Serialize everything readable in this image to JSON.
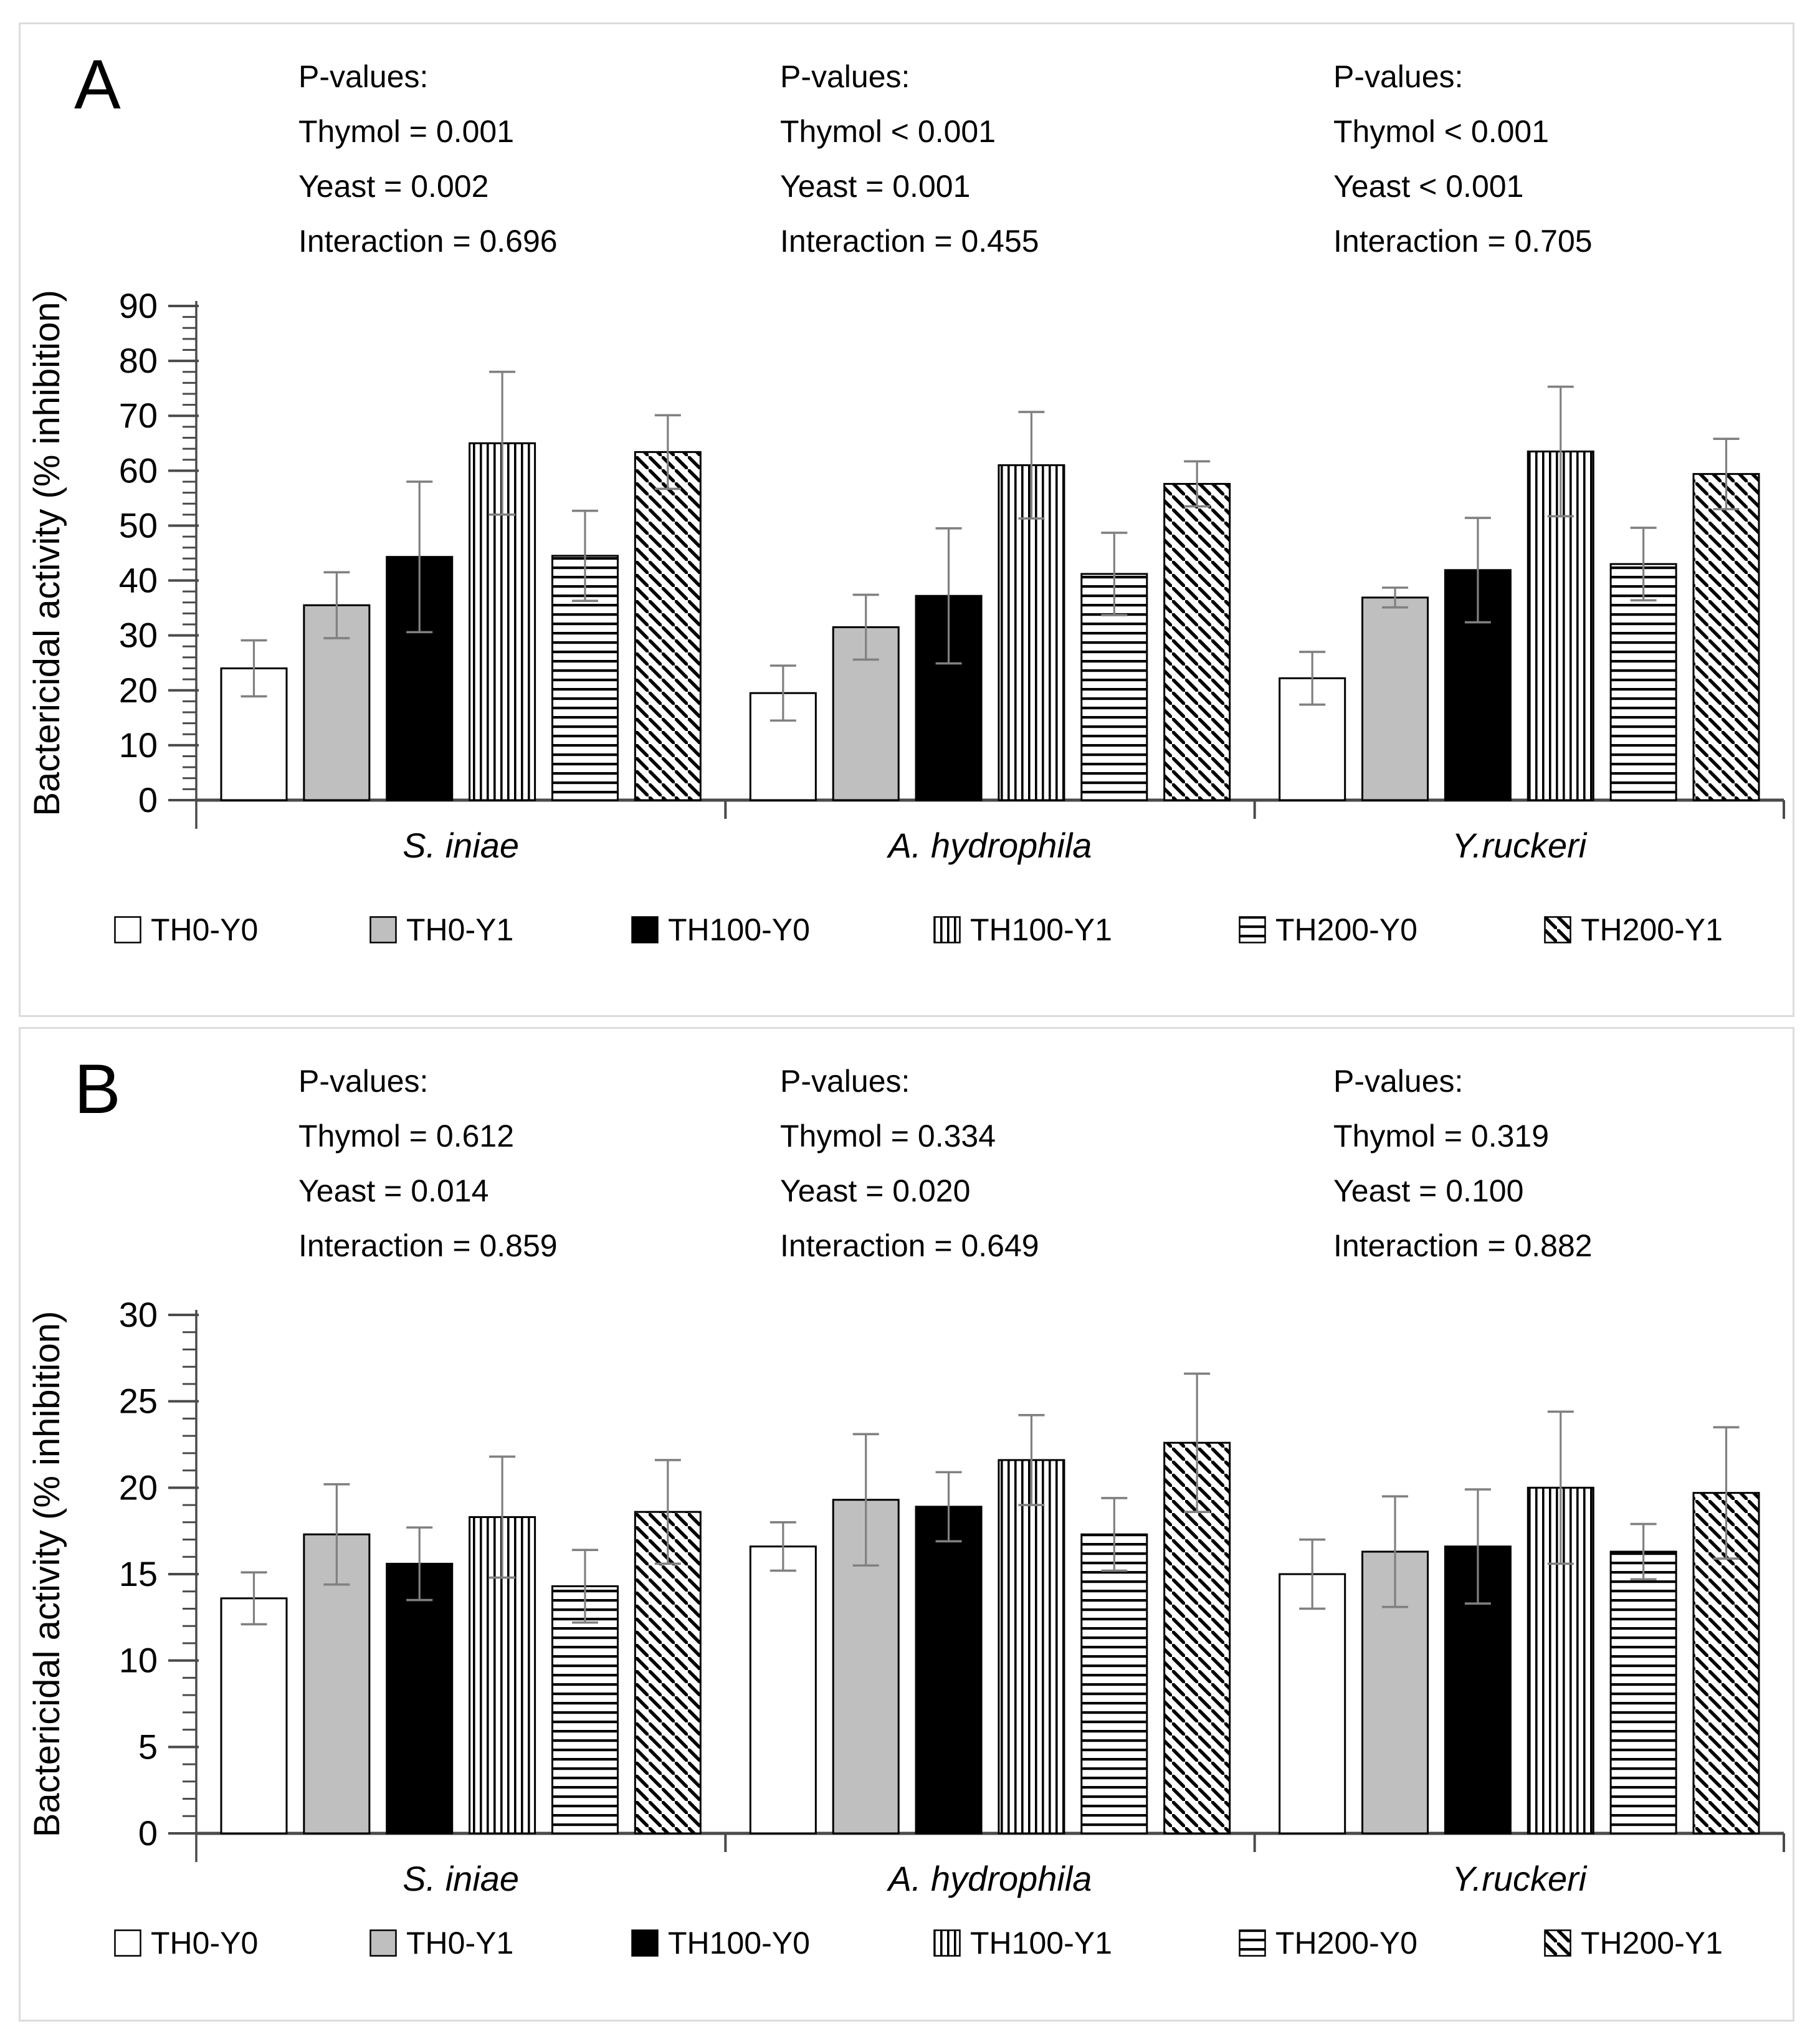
{
  "colors": {
    "bar_gray": "#bfbfbf",
    "bar_black": "#000000",
    "bar_white": "#ffffff",
    "bar_outline": "#000000",
    "error_bar": "#808080",
    "axis": "#4a4a4a",
    "panel_border": "#dcdcdc",
    "text": "#000000"
  },
  "legend": {
    "items": [
      {
        "label": "TH0-Y0",
        "pattern": "solid-white"
      },
      {
        "label": "TH0-Y1",
        "pattern": "solid-gray"
      },
      {
        "label": "TH100-Y0",
        "pattern": "solid-black"
      },
      {
        "label": "TH100-Y1",
        "pattern": "vertical-stripes"
      },
      {
        "label": "TH200-Y0",
        "pattern": "horizontal-stripes"
      },
      {
        "label": "TH200-Y1",
        "pattern": "diagonal-stripes"
      }
    ]
  },
  "chart_data": [
    {
      "type": "bar",
      "panel_label": "A",
      "title": "",
      "ylabel": "Bactericidal activity (% inhibition)",
      "xlabel": "",
      "ylim": [
        0,
        90
      ],
      "ytick_major": 10,
      "ytick_minor": 2,
      "grid": false,
      "legend_position": "bottom",
      "categories": [
        "S. iniae",
        "A. hydrophila",
        "Y.ruckeri"
      ],
      "annotations": [
        {
          "title": "P-values:",
          "lines": [
            "Thymol = 0.001",
            "Yeast = 0.002",
            "Interaction = 0.696"
          ]
        },
        {
          "title": "P-values:",
          "lines": [
            "Thymol < 0.001",
            "Yeast = 0.001",
            "Interaction = 0.455"
          ]
        },
        {
          "title": "P-values:",
          "lines": [
            "Thymol < 0.001",
            "Yeast < 0.001",
            "Interaction = 0.705"
          ]
        }
      ],
      "series": [
        {
          "name": "TH0-Y0",
          "pattern": "solid-white",
          "values": [
            24.0,
            19.5,
            22.2
          ],
          "errors": [
            5.1,
            5.0,
            4.8
          ]
        },
        {
          "name": "TH0-Y1",
          "pattern": "solid-gray",
          "values": [
            35.5,
            31.5,
            36.9
          ],
          "errors": [
            6.0,
            5.9,
            1.8
          ]
        },
        {
          "name": "TH100-Y0",
          "pattern": "solid-black",
          "values": [
            44.3,
            37.2,
            41.9
          ],
          "errors": [
            13.7,
            12.3,
            9.5
          ]
        },
        {
          "name": "TH100-Y1",
          "pattern": "vertical-stripes",
          "values": [
            65.0,
            61.0,
            63.5
          ],
          "errors": [
            13.0,
            9.7,
            11.8
          ]
        },
        {
          "name": "TH200-Y0",
          "pattern": "horizontal-stripes",
          "values": [
            44.5,
            41.2,
            43.0
          ],
          "errors": [
            8.2,
            7.5,
            6.6
          ]
        },
        {
          "name": "TH200-Y1",
          "pattern": "diagonal-stripes",
          "values": [
            63.4,
            57.6,
            59.4
          ],
          "errors": [
            6.7,
            4.1,
            6.4
          ]
        }
      ]
    },
    {
      "type": "bar",
      "panel_label": "B",
      "title": "",
      "ylabel": "Bactericidal activity (% inhibition)",
      "xlabel": "",
      "ylim": [
        0,
        30
      ],
      "ytick_major": 5,
      "ytick_minor": 1,
      "grid": false,
      "legend_position": "bottom",
      "categories": [
        "S. iniae",
        "A. hydrophila",
        "Y.ruckeri"
      ],
      "annotations": [
        {
          "title": "P-values:",
          "lines": [
            "Thymol = 0.612",
            "Yeast = 0.014",
            "Interaction = 0.859"
          ]
        },
        {
          "title": "P-values:",
          "lines": [
            "Thymol = 0.334",
            "Yeast = 0.020",
            "Interaction = 0.649"
          ]
        },
        {
          "title": "P-values:",
          "lines": [
            "Thymol = 0.319",
            "Yeast = 0.100",
            "Interaction = 0.882"
          ]
        }
      ],
      "series": [
        {
          "name": "TH0-Y0",
          "pattern": "solid-white",
          "values": [
            13.6,
            16.6,
            15.0
          ],
          "errors": [
            1.5,
            1.4,
            2.0
          ]
        },
        {
          "name": "TH0-Y1",
          "pattern": "solid-gray",
          "values": [
            17.3,
            19.3,
            16.3
          ],
          "errors": [
            2.9,
            3.8,
            3.2
          ]
        },
        {
          "name": "TH100-Y0",
          "pattern": "solid-black",
          "values": [
            15.6,
            18.9,
            16.6
          ],
          "errors": [
            2.1,
            2.0,
            3.3
          ]
        },
        {
          "name": "TH100-Y1",
          "pattern": "vertical-stripes",
          "values": [
            18.3,
            21.6,
            20.0
          ],
          "errors": [
            3.5,
            2.6,
            4.4
          ]
        },
        {
          "name": "TH200-Y0",
          "pattern": "horizontal-stripes",
          "values": [
            14.3,
            17.3,
            16.3
          ],
          "errors": [
            2.1,
            2.1,
            1.6
          ]
        },
        {
          "name": "TH200-Y1",
          "pattern": "diagonal-stripes",
          "values": [
            18.6,
            22.6,
            19.7
          ],
          "errors": [
            3.0,
            4.0,
            3.8
          ]
        }
      ]
    }
  ]
}
